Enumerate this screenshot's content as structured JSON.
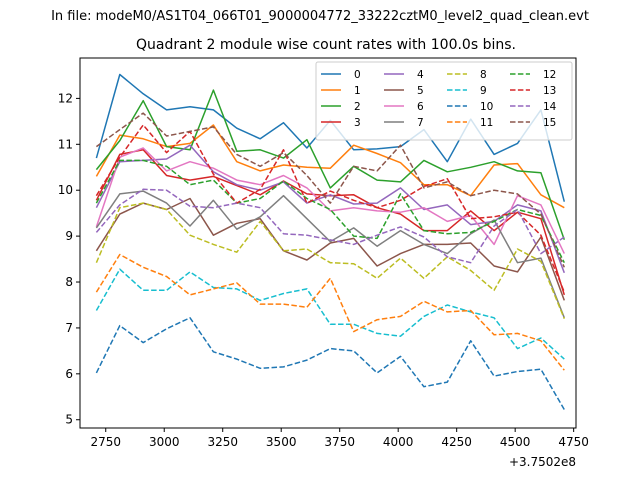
{
  "chart_data": {
    "type": "line",
    "suptitle": "In file: modeM0/AS1T04_066T01_9000004772_33222cztM0_level2_quad_clean.evt",
    "title": "Quadrant 2 module wise count rates with 100.0s bins.",
    "xlabel": "",
    "ylabel": "",
    "x_offset_label": "+3.7502e8",
    "x_offset": 375020000,
    "xlim": [
      2640,
      4760
    ],
    "ylim": [
      4.82,
      12.88
    ],
    "xticks": [
      2750,
      3000,
      3250,
      3500,
      3750,
      4000,
      4250,
      4500,
      4750
    ],
    "yticks": [
      5,
      6,
      7,
      8,
      9,
      10,
      11,
      12
    ],
    "legend_position": "upper-right",
    "legend_columns": 4,
    "x": [
      2710,
      2810,
      2910,
      3010,
      3110,
      3210,
      3310,
      3410,
      3510,
      3610,
      3710,
      3810,
      3910,
      4010,
      4110,
      4210,
      4310,
      4410,
      4510,
      4610,
      4710
    ],
    "series": [
      {
        "name": "0",
        "color": "#1f77b4",
        "dash": "solid",
        "values": [
          10.7,
          12.52,
          12.1,
          11.75,
          11.82,
          11.75,
          11.35,
          11.12,
          11.47,
          10.92,
          11.52,
          10.88,
          10.9,
          10.95,
          11.32,
          10.62,
          11.55,
          10.78,
          11.02,
          11.75,
          9.75
        ]
      },
      {
        "name": "1",
        "color": "#ff7f0e",
        "dash": "solid",
        "values": [
          10.3,
          11.2,
          11.12,
          10.95,
          11.02,
          11.42,
          10.62,
          10.42,
          10.55,
          10.5,
          10.48,
          10.98,
          10.8,
          10.6,
          10.12,
          10.12,
          9.88,
          10.55,
          10.58,
          9.9,
          9.62
        ]
      },
      {
        "name": "2",
        "color": "#2ca02c",
        "dash": "solid",
        "values": [
          10.45,
          11.08,
          11.95,
          10.95,
          10.88,
          12.18,
          10.85,
          10.88,
          10.7,
          11.1,
          10.05,
          10.52,
          10.22,
          10.18,
          10.65,
          10.4,
          10.5,
          10.62,
          10.42,
          10.38,
          8.92
        ]
      },
      {
        "name": "3",
        "color": "#d62728",
        "dash": "solid",
        "values": [
          9.78,
          10.78,
          10.88,
          10.32,
          10.22,
          10.3,
          10.1,
          9.9,
          10.2,
          9.92,
          9.88,
          9.9,
          9.62,
          9.48,
          9.12,
          9.12,
          9.55,
          9.12,
          9.52,
          9.38,
          7.72
        ]
      },
      {
        "name": "4",
        "color": "#9467bd",
        "dash": "solid",
        "values": [
          9.62,
          10.62,
          10.65,
          10.68,
          10.98,
          10.4,
          10.12,
          10.0,
          10.18,
          9.72,
          9.9,
          9.7,
          9.72,
          10.05,
          9.58,
          9.68,
          9.25,
          9.32,
          9.68,
          9.55,
          8.2
        ]
      },
      {
        "name": "5",
        "color": "#8c564b",
        "dash": "solid",
        "values": [
          8.68,
          9.48,
          9.72,
          9.58,
          9.82,
          9.02,
          9.28,
          9.38,
          8.68,
          8.48,
          8.85,
          8.95,
          8.35,
          8.62,
          8.82,
          8.82,
          8.85,
          8.35,
          8.22,
          8.98,
          7.6
        ]
      },
      {
        "name": "6",
        "color": "#e377c2",
        "dash": "solid",
        "values": [
          9.2,
          10.72,
          10.92,
          10.42,
          10.62,
          10.48,
          10.22,
          10.12,
          10.32,
          10.05,
          9.55,
          9.62,
          9.55,
          9.52,
          9.62,
          9.32,
          9.45,
          8.82,
          9.88,
          9.68,
          8.62
        ]
      },
      {
        "name": "7",
        "color": "#7f7f7f",
        "dash": "solid",
        "values": [
          9.18,
          9.92,
          9.98,
          9.72,
          9.22,
          9.78,
          9.15,
          9.42,
          9.88,
          9.38,
          8.88,
          9.18,
          8.78,
          9.12,
          8.82,
          8.62,
          9.05,
          9.35,
          8.42,
          8.52,
          7.22
        ]
      },
      {
        "name": "8",
        "color": "#bcbd22",
        "dash": "dashed",
        "values": [
          8.42,
          9.62,
          9.72,
          9.58,
          9.02,
          8.82,
          8.65,
          9.32,
          8.68,
          8.72,
          8.42,
          8.4,
          8.08,
          8.52,
          8.08,
          8.55,
          8.25,
          7.82,
          8.72,
          8.45,
          7.2
        ]
      },
      {
        "name": "9",
        "color": "#17becf",
        "dash": "dashed",
        "values": [
          7.38,
          8.28,
          7.82,
          7.82,
          8.22,
          7.88,
          7.85,
          7.6,
          7.75,
          7.85,
          7.08,
          7.08,
          6.88,
          6.82,
          7.25,
          7.5,
          7.35,
          7.22,
          6.55,
          6.78,
          6.32
        ]
      },
      {
        "name": "10",
        "color": "#1f77b4",
        "dash": "dashed",
        "values": [
          6.02,
          7.05,
          6.68,
          6.98,
          7.22,
          6.48,
          6.32,
          6.12,
          6.15,
          6.3,
          6.55,
          6.5,
          6.02,
          6.38,
          5.72,
          5.82,
          6.72,
          5.95,
          6.05,
          6.1,
          5.22
        ]
      },
      {
        "name": "11",
        "color": "#ff7f0e",
        "dash": "dashed",
        "values": [
          7.78,
          8.6,
          8.32,
          8.12,
          7.72,
          7.85,
          7.98,
          7.52,
          7.52,
          7.45,
          8.08,
          6.92,
          7.18,
          7.25,
          7.58,
          7.35,
          7.38,
          6.85,
          6.88,
          6.72,
          6.08
        ]
      },
      {
        "name": "12",
        "color": "#2ca02c",
        "dash": "dashed",
        "values": [
          9.72,
          10.65,
          10.65,
          10.52,
          10.12,
          10.22,
          9.72,
          9.82,
          10.2,
          9.82,
          9.58,
          9.0,
          8.95,
          9.92,
          9.12,
          9.05,
          9.08,
          9.32,
          9.58,
          9.45,
          8.42
        ]
      },
      {
        "name": "13",
        "color": "#d62728",
        "dash": "dashed",
        "values": [
          9.88,
          10.72,
          11.42,
          10.82,
          11.28,
          10.35,
          9.72,
          10.02,
          10.88,
          9.72,
          9.98,
          9.78,
          9.62,
          9.78,
          10.08,
          10.25,
          9.38,
          9.42,
          9.52,
          9.02,
          7.78
        ]
      },
      {
        "name": "14",
        "color": "#9467bd",
        "dash": "dashed",
        "values": [
          9.08,
          9.68,
          10.02,
          10.0,
          9.65,
          9.62,
          9.72,
          9.62,
          9.05,
          9.02,
          8.92,
          8.82,
          9.02,
          9.2,
          8.98,
          8.55,
          8.42,
          9.22,
          9.58,
          8.62,
          8.98
        ]
      },
      {
        "name": "15",
        "color": "#8c564b",
        "dash": "dashed",
        "values": [
          10.95,
          11.32,
          11.68,
          11.18,
          11.28,
          11.38,
          10.78,
          10.52,
          10.82,
          10.32,
          9.72,
          10.52,
          10.42,
          10.98,
          10.05,
          10.18,
          9.88,
          10.0,
          9.92,
          9.48,
          8.32
        ]
      }
    ]
  }
}
